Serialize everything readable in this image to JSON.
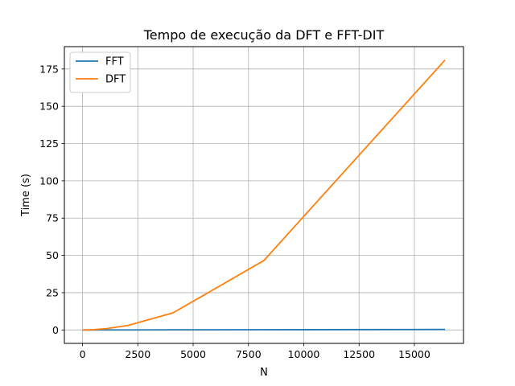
{
  "chart_data": {
    "type": "line",
    "title": "Tempo de execução da DFT e FFT-DIT",
    "xlabel": "N",
    "ylabel": "Time (s)",
    "xlim": [
      -820,
      17220
    ],
    "ylim": [
      -9,
      190
    ],
    "xticks": [
      0,
      2500,
      5000,
      7500,
      10000,
      12500,
      15000
    ],
    "yticks": [
      0,
      25,
      50,
      75,
      100,
      125,
      150,
      175
    ],
    "grid": true,
    "legend_position": "top-left",
    "series": [
      {
        "name": "FFT",
        "color": "#1f77b4",
        "x": [
          2,
          4,
          8,
          16,
          32,
          64,
          128,
          256,
          512,
          1024,
          2048,
          4096,
          8192,
          16384
        ],
        "y": [
          0,
          0,
          0,
          0,
          0,
          0,
          0,
          0,
          0.01,
          0.02,
          0.04,
          0.08,
          0.17,
          0.35
        ]
      },
      {
        "name": "DFT",
        "color": "#ff7f0e",
        "x": [
          2,
          4,
          8,
          16,
          32,
          64,
          128,
          256,
          512,
          1024,
          2048,
          4096,
          8192,
          16384
        ],
        "y": [
          0,
          0,
          0,
          0,
          0,
          0,
          0.01,
          0.05,
          0.2,
          0.8,
          3.0,
          11.5,
          46.5,
          181
        ]
      }
    ]
  }
}
